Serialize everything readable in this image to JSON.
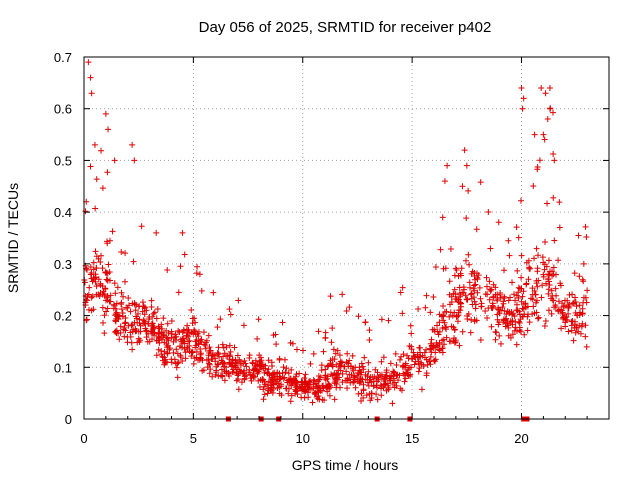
{
  "chart_data": {
    "type": "scatter",
    "title": "Day 056 of 2025, SRMTID for receiver p402",
    "xlabel": "GPS time / hours",
    "ylabel": "SRMTID / TECUs",
    "xlim": [
      0,
      24
    ],
    "ylim": [
      0,
      0.7
    ],
    "xticks": [
      0,
      5,
      10,
      15,
      20
    ],
    "yticks": [
      0,
      0.1,
      0.2,
      0.3,
      0.4,
      0.5,
      0.6,
      0.7
    ],
    "grid": true,
    "marker": "+",
    "color": "#e00000",
    "envelope": {
      "x": [
        0.0,
        0.5,
        1.0,
        1.5,
        2.0,
        2.5,
        3.0,
        3.5,
        4.0,
        4.5,
        5.0,
        5.5,
        6.0,
        6.5,
        7.0,
        7.5,
        8.0,
        8.5,
        9.0,
        9.5,
        10.0,
        10.5,
        11.0,
        11.5,
        12.0,
        12.5,
        13.0,
        13.5,
        14.0,
        14.5,
        15.0,
        15.5,
        16.0,
        16.5,
        17.0,
        17.5,
        18.0,
        18.5,
        19.0,
        19.5,
        20.0,
        20.5,
        21.0,
        21.5,
        22.0,
        22.5,
        23.0
      ],
      "mean": [
        0.24,
        0.27,
        0.25,
        0.21,
        0.19,
        0.18,
        0.19,
        0.16,
        0.14,
        0.14,
        0.16,
        0.13,
        0.12,
        0.11,
        0.1,
        0.09,
        0.09,
        0.08,
        0.08,
        0.07,
        0.06,
        0.06,
        0.07,
        0.09,
        0.1,
        0.08,
        0.07,
        0.07,
        0.08,
        0.1,
        0.11,
        0.12,
        0.13,
        0.18,
        0.22,
        0.24,
        0.24,
        0.22,
        0.2,
        0.19,
        0.22,
        0.25,
        0.27,
        0.25,
        0.2,
        0.2,
        0.21
      ],
      "spread": [
        0.05,
        0.07,
        0.06,
        0.05,
        0.05,
        0.04,
        0.05,
        0.04,
        0.04,
        0.04,
        0.05,
        0.04,
        0.04,
        0.03,
        0.03,
        0.03,
        0.03,
        0.03,
        0.03,
        0.02,
        0.02,
        0.02,
        0.03,
        0.04,
        0.04,
        0.03,
        0.03,
        0.03,
        0.03,
        0.04,
        0.04,
        0.04,
        0.04,
        0.06,
        0.07,
        0.07,
        0.06,
        0.05,
        0.05,
        0.05,
        0.06,
        0.07,
        0.08,
        0.07,
        0.05,
        0.05,
        0.05
      ]
    },
    "notable_points": [
      {
        "x": 0.2,
        "y": 0.69
      },
      {
        "x": 0.3,
        "y": 0.66
      },
      {
        "x": 0.35,
        "y": 0.63
      },
      {
        "x": 1.0,
        "y": 0.59
      },
      {
        "x": 1.1,
        "y": 0.56
      },
      {
        "x": 2.2,
        "y": 0.53
      },
      {
        "x": 2.3,
        "y": 0.5
      },
      {
        "x": 0.5,
        "y": 0.53
      },
      {
        "x": 1.4,
        "y": 0.5
      },
      {
        "x": 3.3,
        "y": 0.36
      },
      {
        "x": 4.5,
        "y": 0.36
      },
      {
        "x": 5.3,
        "y": 0.28
      },
      {
        "x": 16.5,
        "y": 0.46
      },
      {
        "x": 16.6,
        "y": 0.49
      },
      {
        "x": 16.4,
        "y": 0.39
      },
      {
        "x": 17.4,
        "y": 0.52
      },
      {
        "x": 17.5,
        "y": 0.49
      },
      {
        "x": 17.3,
        "y": 0.45
      },
      {
        "x": 20.0,
        "y": 0.64
      },
      {
        "x": 20.1,
        "y": 0.62
      },
      {
        "x": 20.05,
        "y": 0.6
      },
      {
        "x": 20.9,
        "y": 0.64
      },
      {
        "x": 21.1,
        "y": 0.63
      },
      {
        "x": 21.3,
        "y": 0.64
      },
      {
        "x": 21.3,
        "y": 0.6
      },
      {
        "x": 21.0,
        "y": 0.55
      },
      {
        "x": 21.2,
        "y": 0.58
      },
      {
        "x": 20.6,
        "y": 0.55
      },
      {
        "x": 21.5,
        "y": 0.5
      }
    ],
    "zero_marks": [
      6.6,
      8.1,
      8.9,
      13.4,
      14.9,
      20.1,
      20.25
    ]
  }
}
